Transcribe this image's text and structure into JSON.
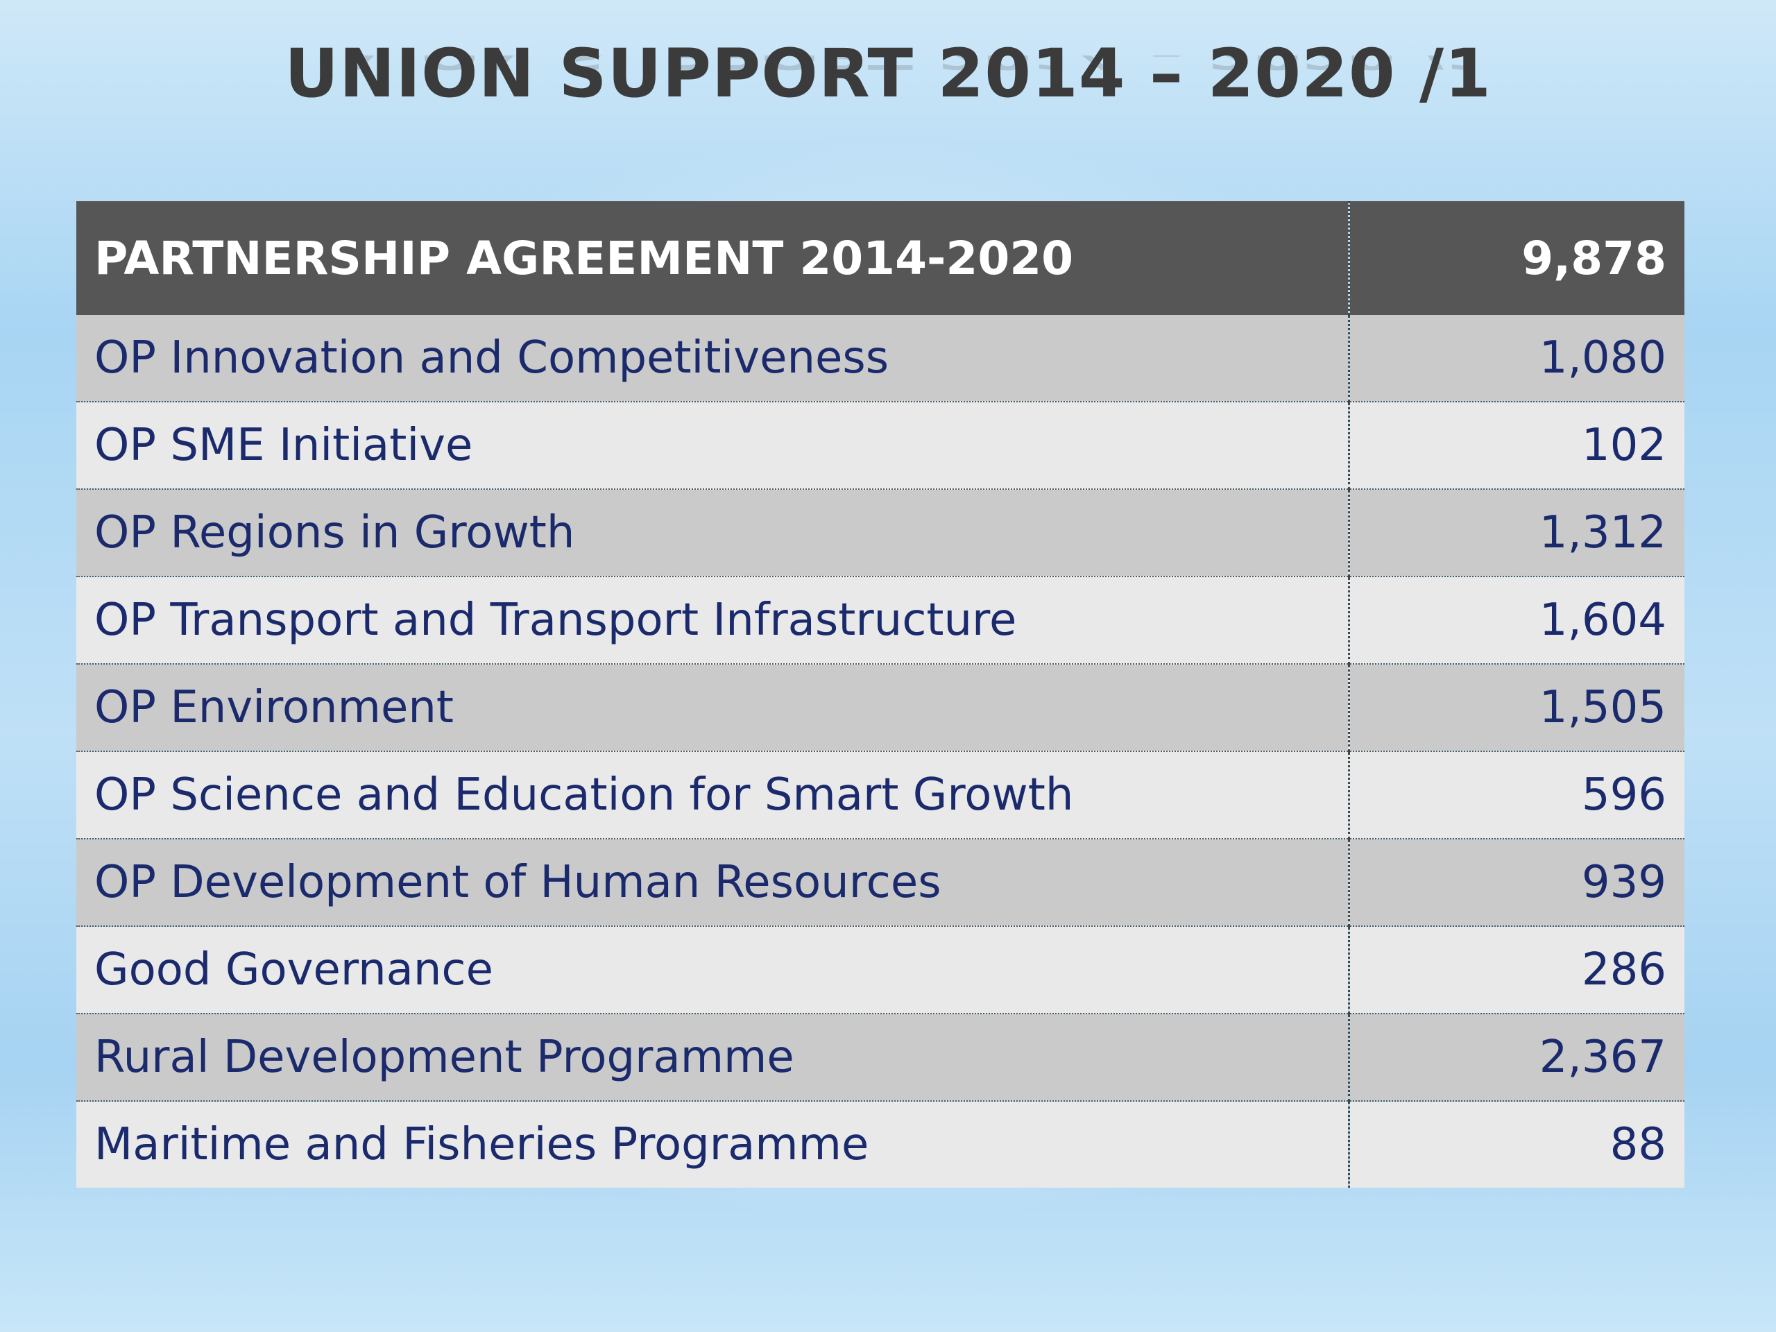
{
  "title": "UNION SUPPORT 2014 – 2020 /1",
  "table": {
    "header": {
      "label": "PARTNERSHIP AGREEMENT 2014-2020",
      "value": "9,878"
    },
    "rows": [
      {
        "label": "OP Innovation and Competitiveness",
        "value": "1,080"
      },
      {
        "label": "OP SME Initiative",
        "value": "102"
      },
      {
        "label": "OP Regions in Growth",
        "value": "1,312"
      },
      {
        "label": "OP Transport and Transport Infrastructure",
        "value": "1,604"
      },
      {
        "label": "OP Environment",
        "value": "1,505"
      },
      {
        "label": "OP Science and Education for Smart Growth",
        "value": "596"
      },
      {
        "label": "OP Development of Human Resources",
        "value": "939"
      },
      {
        "label": "Good Governance",
        "value": "286"
      },
      {
        "label": "Rural Development Programme",
        "value": "2,367"
      },
      {
        "label": "Maritime and Fisheries Programme",
        "value": "88"
      }
    ]
  },
  "colors": {
    "header_bg": "#565656",
    "row_dark_bg": "#cacaca",
    "row_light_bg": "#e9e9e9",
    "text": "#1a2a6c",
    "title": "#3b3b3b"
  }
}
